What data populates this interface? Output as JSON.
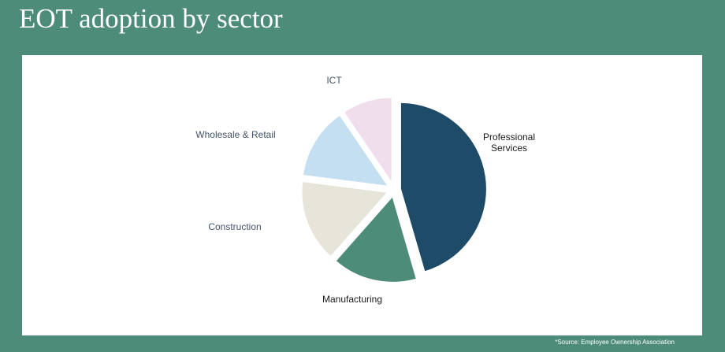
{
  "slide": {
    "title": "EOT adoption by sector",
    "source": "*Source: Employee Ownership Association"
  },
  "colors": {
    "background": "#4d8c79",
    "panel": "#ffffff",
    "professional_services": "#1e4b68",
    "manufacturing": "#4d8c79",
    "construction": "#e7e4d9",
    "wholesale_retail": "#c5dff2",
    "ict": "#f1deec"
  },
  "chart_data": {
    "type": "pie",
    "title": "",
    "exploded": true,
    "slices": [
      {
        "label": "Professional Services",
        "value": 45.5,
        "color": "#1e4b68",
        "label_color": "#1a1a1a"
      },
      {
        "label": "Manufacturing",
        "value": 16,
        "color": "#4d8c79",
        "label_color": "#1a1a1a"
      },
      {
        "label": "Construction",
        "value": 15.5,
        "color": "#e7e4d9",
        "label_color": "#44546a"
      },
      {
        "label": "Wholesale & Retail",
        "value": 13.5,
        "color": "#c5dff2",
        "label_color": "#44546a"
      },
      {
        "label": "ICT",
        "value": 9.5,
        "color": "#f1deec",
        "label_color": "#44546a"
      }
    ]
  }
}
